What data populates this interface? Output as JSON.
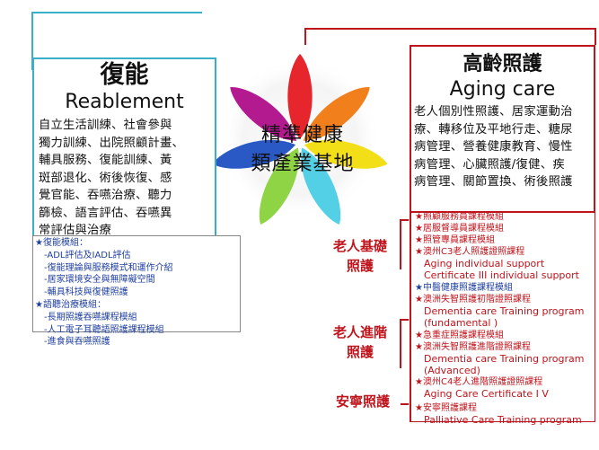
{
  "center": {
    "line1": "精準健康",
    "line2": "類產業基地"
  },
  "left": {
    "title_zh": "復能",
    "title_en": "Reablement",
    "description_lines": [
      "自立生活訓練、社會參與",
      "獨力訓練、出院照顧計畫、",
      "輔具服務、復能訓練、黃",
      "斑部退化、術後恢復、感",
      "覺官能、吞嚥治療、聽力",
      "篩檢、語言評估、吞嚥異",
      "常評估與治療"
    ],
    "modules": [
      {
        "text": "★復能模組：",
        "type": "head"
      },
      {
        "text": "-ADL評估及IADL評估",
        "type": "item"
      },
      {
        "text": "-復能理論與服務模式和運作介紹",
        "type": "item"
      },
      {
        "text": "-居家環境安全與無障礙空間",
        "type": "item"
      },
      {
        "text": "-輔具科技與復健照護",
        "type": "item"
      },
      {
        "text": "★語聽治療模組：",
        "type": "head"
      },
      {
        "text": "-長期照護吞嚥課程模組",
        "type": "item"
      },
      {
        "text": "-人工電子耳聽語照護課程模組",
        "type": "item"
      },
      {
        "text": "-進食與吞嚥照護",
        "type": "item"
      }
    ]
  },
  "right": {
    "title_zh": "高齡照護",
    "title_en": "Aging care",
    "description_lines": [
      "老人個別性照護、居家運動治",
      "療、轉移位及平地行走、糖尿",
      "病管理、營養健康教育、慢性",
      "病管理、心臟照護/復健、疾",
      "病管理、關節置換、術後照護"
    ],
    "courses": [
      {
        "text": "★照顧服務員課程模組",
        "style": "red"
      },
      {
        "text": "★居服督導員課程模組",
        "style": "red"
      },
      {
        "text": "★照管專員課程模組",
        "style": "red"
      },
      {
        "text": "★澳州C3老人照護證照課程",
        "style": "red"
      },
      {
        "text": "Aging individual support",
        "style": "en"
      },
      {
        "text": "Certificate III  individual support",
        "style": "en"
      },
      {
        "text": "★中醫健康照護課程模組",
        "style": "blue"
      },
      {
        "text": "★澳洲失智照護初階證照課程",
        "style": "red"
      },
      {
        "text": "Dementia care Training program",
        "style": "en"
      },
      {
        "text": "(fundamental )",
        "style": "en"
      },
      {
        "text": "★急重症照護課程模組",
        "style": "red"
      },
      {
        "text": "★澳洲失智照護進階證照課程",
        "style": "red"
      },
      {
        "text": "Dementia care Training program",
        "style": "en"
      },
      {
        "text": "(Advanced)",
        "style": "en"
      },
      {
        "text": "★澳州C4老人進階照護證照課程",
        "style": "red"
      },
      {
        "text": "Aging Care Certificate I V",
        "style": "en"
      },
      {
        "text": "★安寧照護課程",
        "style": "red"
      },
      {
        "text": "Palliative Care Training program",
        "style": "en"
      }
    ],
    "categories": {
      "basic_l1": "老人基礎",
      "basic_l2": "照護",
      "advanced_l1": "老人進階",
      "advanced_l2": "照護",
      "hospice": "安寧照護"
    }
  },
  "colors": {
    "left_border": "#3ab0c8",
    "right_border": "#c0141c",
    "module_text": "#1f3fa0",
    "course_text": "#c0141c",
    "petals": [
      "#e6262c",
      "#f07f1c",
      "#f3df17",
      "#53cfe6",
      "#8fd445",
      "#2a58c4",
      "#b31a8f"
    ]
  }
}
